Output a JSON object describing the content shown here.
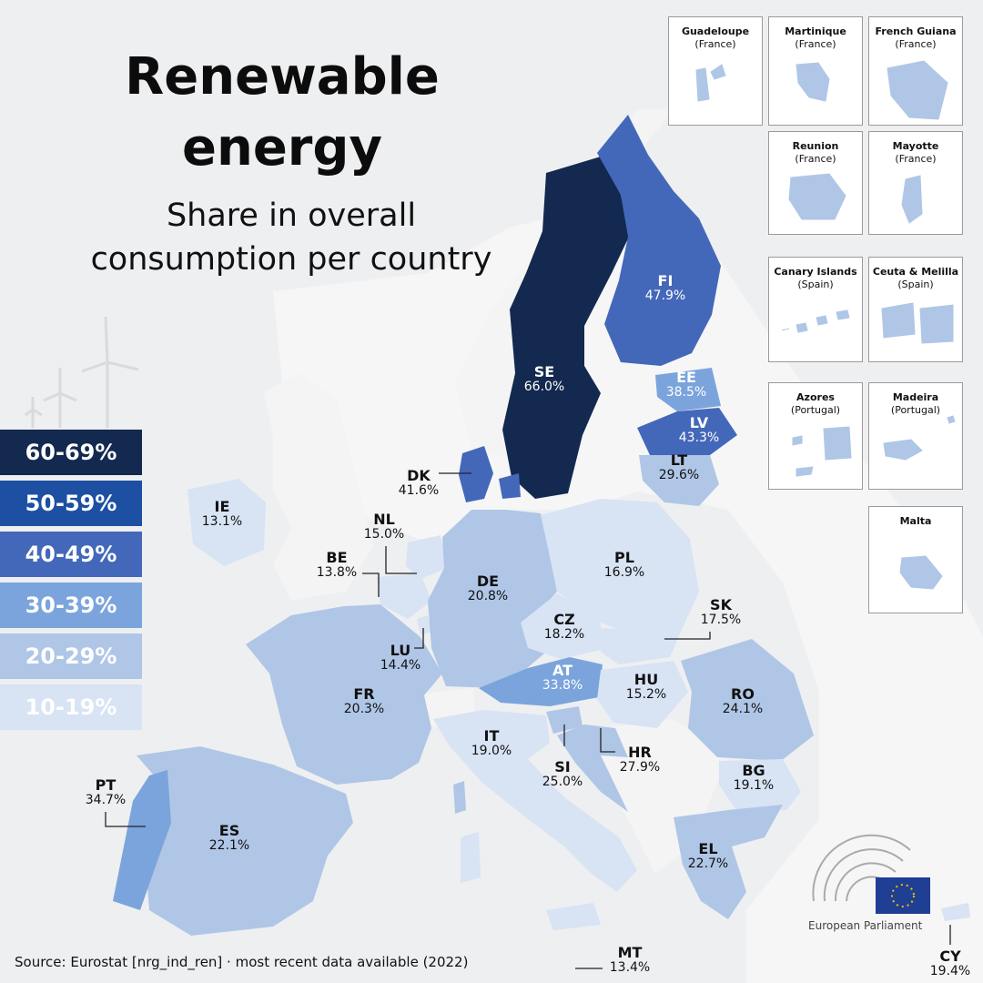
{
  "title": {
    "line1": "Renewable",
    "line2": "energy"
  },
  "subtitle": {
    "line1": "Share in overall",
    "line2": "consumption per country"
  },
  "legend": [
    {
      "label": "60-69%",
      "color": "#13294f",
      "text_color": "#ffffff"
    },
    {
      "label": "50-59%",
      "color": "#1d4fa3",
      "text_color": "#ffffff"
    },
    {
      "label": "40-49%",
      "color": "#4468b9",
      "text_color": "#ffffff"
    },
    {
      "label": "30-39%",
      "color": "#7ba4dc",
      "text_color": "#ffffff"
    },
    {
      "label": "20-29%",
      "color": "#b0c6e6",
      "text_color": "#ffffff"
    },
    {
      "label": "10-19%",
      "color": "#d8e3f4",
      "text_color": "#ffffff"
    }
  ],
  "countries": [
    {
      "code": "SE",
      "value": "66.0%"
    },
    {
      "code": "FI",
      "value": "47.9%"
    },
    {
      "code": "EE",
      "value": "38.5%"
    },
    {
      "code": "LV",
      "value": "43.3%"
    },
    {
      "code": "LT",
      "value": "29.6%"
    },
    {
      "code": "DK",
      "value": "41.6%"
    },
    {
      "code": "IE",
      "value": "13.1%"
    },
    {
      "code": "NL",
      "value": "15.0%"
    },
    {
      "code": "BE",
      "value": "13.8%"
    },
    {
      "code": "DE",
      "value": "20.8%"
    },
    {
      "code": "PL",
      "value": "16.9%"
    },
    {
      "code": "CZ",
      "value": "18.2%"
    },
    {
      "code": "SK",
      "value": "17.5%"
    },
    {
      "code": "LU",
      "value": "14.4%"
    },
    {
      "code": "AT",
      "value": "33.8%"
    },
    {
      "code": "HU",
      "value": "15.2%"
    },
    {
      "code": "RO",
      "value": "24.1%"
    },
    {
      "code": "FR",
      "value": "20.3%"
    },
    {
      "code": "IT",
      "value": "19.0%"
    },
    {
      "code": "SI",
      "value": "25.0%"
    },
    {
      "code": "HR",
      "value": "27.9%"
    },
    {
      "code": "BG",
      "value": "19.1%"
    },
    {
      "code": "PT",
      "value": "34.7%"
    },
    {
      "code": "ES",
      "value": "22.1%"
    },
    {
      "code": "EL",
      "value": "22.7%"
    },
    {
      "code": "MT",
      "value": "13.4%"
    },
    {
      "code": "CY",
      "value": "19.4%"
    }
  ],
  "insets": [
    {
      "name": "Guadeloupe",
      "country": "(France)"
    },
    {
      "name": "Martinique",
      "country": "(France)"
    },
    {
      "name": "French Guiana",
      "country": "(France)"
    },
    {
      "name": "Reunion",
      "country": "(France)"
    },
    {
      "name": "Mayotte",
      "country": "(France)"
    },
    {
      "name": "Canary Islands",
      "country": "(Spain)"
    },
    {
      "name": "Ceuta & Melilla",
      "country": "(Spain)"
    },
    {
      "name": "Azores",
      "country": "(Portugal)"
    },
    {
      "name": "Madeira",
      "country": "(Portugal)"
    },
    {
      "name": "Malta",
      "country": ""
    }
  ],
  "source": "Source: Eurostat [nrg_ind_ren] · most recent data available (2022)",
  "logo_text": "European Parliament"
}
